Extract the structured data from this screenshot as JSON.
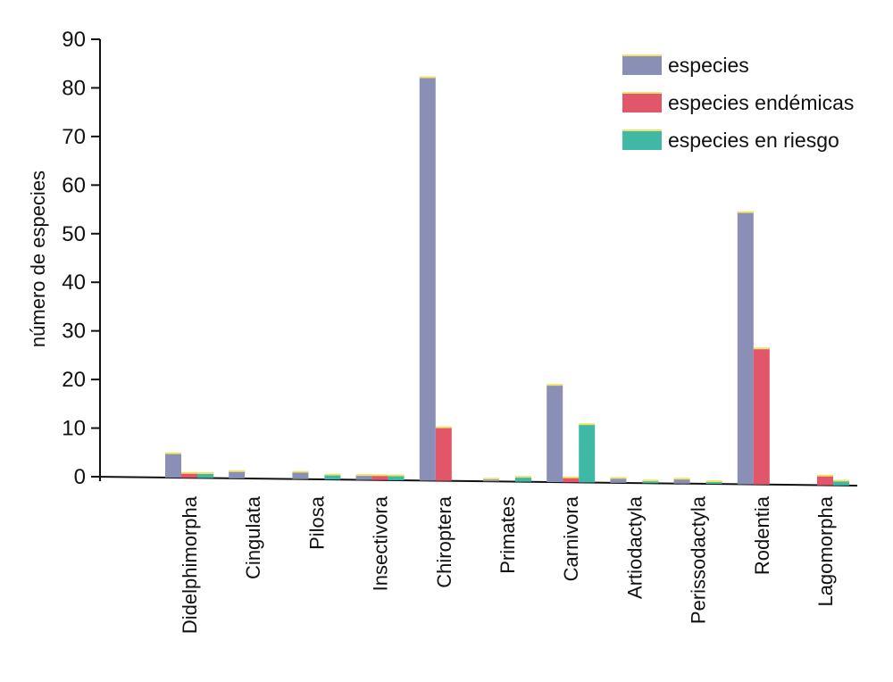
{
  "chart_data": {
    "type": "bar",
    "title": "",
    "xlabel": "",
    "ylabel": "número de especies",
    "ylim": [
      0,
      90
    ],
    "yticks": [
      0,
      10,
      20,
      30,
      40,
      50,
      60,
      70,
      80,
      90
    ],
    "grid": false,
    "legend_position": "top-right",
    "categories": [
      "Didelphimorpha",
      "Cingulata",
      "Pilosa",
      "Insectivora",
      "Chiroptera",
      "Primates",
      "Carnivora",
      "Artiodactyla",
      "Perissodactyla",
      "Rodentia",
      "Lagomorpha"
    ],
    "series": [
      {
        "name": "especies",
        "color": "#8a8fb5",
        "values": [
          5,
          1.5,
          1.5,
          1,
          83,
          0.5,
          20,
          1,
          1,
          56,
          0
        ]
      },
      {
        "name": "especies endémicas",
        "color": "#e2566a",
        "values": [
          1,
          0,
          0,
          1,
          11,
          0,
          1,
          0,
          0,
          28,
          2
        ]
      },
      {
        "name": "especies en riesgo",
        "color": "#3fb9a6",
        "values": [
          1,
          0,
          1,
          1,
          0,
          1,
          12,
          0.5,
          0.5,
          0,
          1
        ]
      }
    ]
  }
}
